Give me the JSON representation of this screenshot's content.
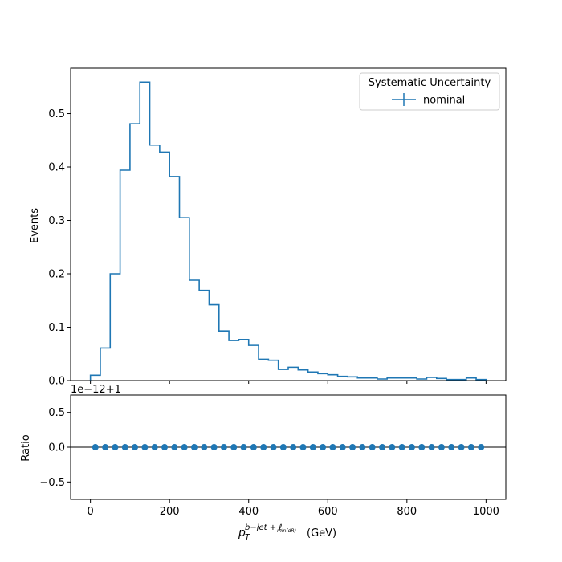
{
  "colors": {
    "series": "#1f77b4",
    "axis": "#000000",
    "frame": "#000000",
    "legend_border": "#cccccc"
  },
  "chart_data": [
    {
      "type": "step",
      "panel": "main",
      "ylabel": "Events",
      "xlim": [
        -50,
        1050
      ],
      "ylim": [
        0,
        0.585
      ],
      "yticks": [
        0.0,
        0.1,
        0.2,
        0.3,
        0.4,
        0.5
      ],
      "ytick_labels": [
        "0.0",
        "0.1",
        "0.2",
        "0.3",
        "0.4",
        "0.5"
      ],
      "legend": {
        "title": "Systematic Uncertainty",
        "placement": "top-right"
      },
      "bin_edges": [
        0,
        25,
        50,
        75,
        100,
        125,
        150,
        175,
        200,
        225,
        250,
        275,
        300,
        325,
        350,
        375,
        400,
        425,
        450,
        475,
        500,
        525,
        550,
        575,
        600,
        625,
        650,
        675,
        700,
        725,
        750,
        775,
        800,
        825,
        850,
        875,
        900,
        925,
        950,
        975,
        1000
      ],
      "series": [
        {
          "name": "nominal",
          "values": [
            0.01,
            0.061,
            0.2,
            0.394,
            0.481,
            0.559,
            0.441,
            0.428,
            0.382,
            0.305,
            0.188,
            0.169,
            0.142,
            0.093,
            0.075,
            0.077,
            0.066,
            0.04,
            0.038,
            0.021,
            0.025,
            0.02,
            0.016,
            0.013,
            0.011,
            0.008,
            0.007,
            0.005,
            0.005,
            0.003,
            0.005,
            0.005,
            0.005,
            0.003,
            0.006,
            0.004,
            0.002,
            0.002,
            0.005,
            0.002
          ]
        }
      ]
    },
    {
      "type": "scatter",
      "panel": "ratio",
      "ylabel": "Ratio",
      "xlabel_base": "p",
      "xlabel_sub": "T",
      "xlabel_sup": "b−jet + ℓ",
      "xlabel_sup_sub": "min(dR)",
      "xlabel_unit": "(GeV)",
      "offset_text": "1e−12+1",
      "xlim": [
        -50,
        1050
      ],
      "ylim": [
        -0.75,
        0.75
      ],
      "xticks": [
        0,
        200,
        400,
        600,
        800,
        1000
      ],
      "xtick_labels": [
        "0",
        "200",
        "400",
        "600",
        "800",
        "1000"
      ],
      "yticks": [
        -0.5,
        0.0,
        0.5
      ],
      "ytick_labels": [
        "−0.5",
        "0.0",
        "0.5"
      ],
      "reference_line_y": 0.0,
      "series": [
        {
          "x": [
            12.5,
            37.5,
            62.5,
            87.5,
            112.5,
            137.5,
            162.5,
            187.5,
            212.5,
            237.5,
            262.5,
            287.5,
            312.5,
            337.5,
            362.5,
            387.5,
            412.5,
            437.5,
            462.5,
            487.5,
            512.5,
            537.5,
            562.5,
            587.5,
            612.5,
            637.5,
            662.5,
            687.5,
            712.5,
            737.5,
            762.5,
            787.5,
            812.5,
            837.5,
            862.5,
            887.5,
            912.5,
            937.5,
            962.5,
            987.5
          ],
          "values": [
            0.0,
            0.0,
            0.0,
            0.0,
            0.0,
            0.0,
            0.0,
            0.0,
            0.0,
            0.0,
            0.0,
            0.0,
            0.0,
            0.0,
            0.0,
            0.0,
            0.0,
            0.0,
            0.0,
            0.0,
            0.0,
            0.0,
            0.0,
            0.0,
            0.0,
            0.0,
            0.0,
            0.0,
            0.0,
            0.0,
            0.0,
            0.0,
            0.0,
            0.0,
            0.0,
            0.0,
            0.0,
            0.0,
            0.0,
            0.0
          ]
        }
      ]
    }
  ]
}
